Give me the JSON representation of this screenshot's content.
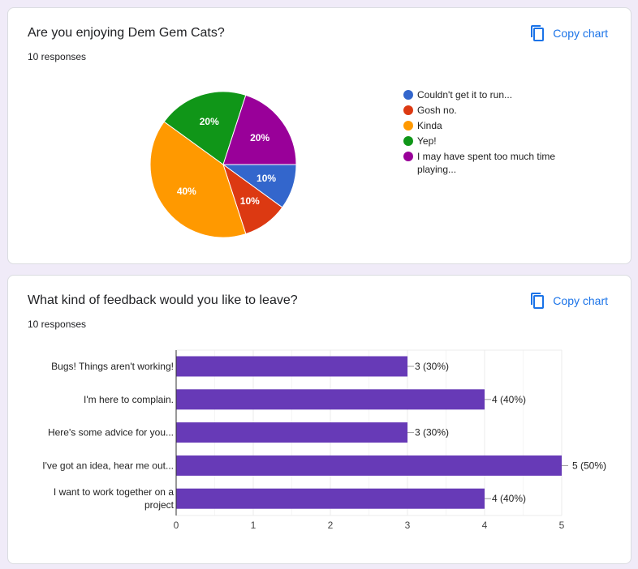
{
  "cards": [
    {
      "title": "Are you enjoying Dem Gem Cats?",
      "responses": "10 responses",
      "copy_label": "Copy chart"
    },
    {
      "title": "What kind of feedback would you like to leave?",
      "responses": "10 responses",
      "copy_label": "Copy chart"
    }
  ],
  "colors": {
    "accent": "#1a73e8",
    "bar": "#673ab7"
  },
  "chart_data": [
    {
      "type": "pie",
      "legend_position": "right",
      "categories": [
        "Couldn't get it to run...",
        "Gosh no.",
        "Kinda",
        "Yep!",
        "I may have spent too much time playing..."
      ],
      "values": [
        1,
        1,
        4,
        2,
        2
      ],
      "labels": [
        "10%",
        "10%",
        "40%",
        "20%",
        "20%"
      ],
      "colors": [
        "#3366cc",
        "#dc3912",
        "#ff9900",
        "#109618",
        "#990099"
      ]
    },
    {
      "type": "bar",
      "orientation": "horizontal",
      "categories": [
        "Bugs! Things aren't working!",
        "I'm here to complain.",
        "Here's some advice for you...",
        "I've got an idea, hear me out...",
        "I want to work together on a project"
      ],
      "values": [
        3,
        4,
        3,
        5,
        4
      ],
      "data_labels": [
        "3 (30%)",
        "4 (40%)",
        "3 (30%)",
        "5 (50%)",
        "4 (40%)"
      ],
      "xlim": [
        0,
        5
      ],
      "ticks": [
        "0",
        "1",
        "2",
        "3",
        "4",
        "5"
      ],
      "grid": true
    }
  ]
}
